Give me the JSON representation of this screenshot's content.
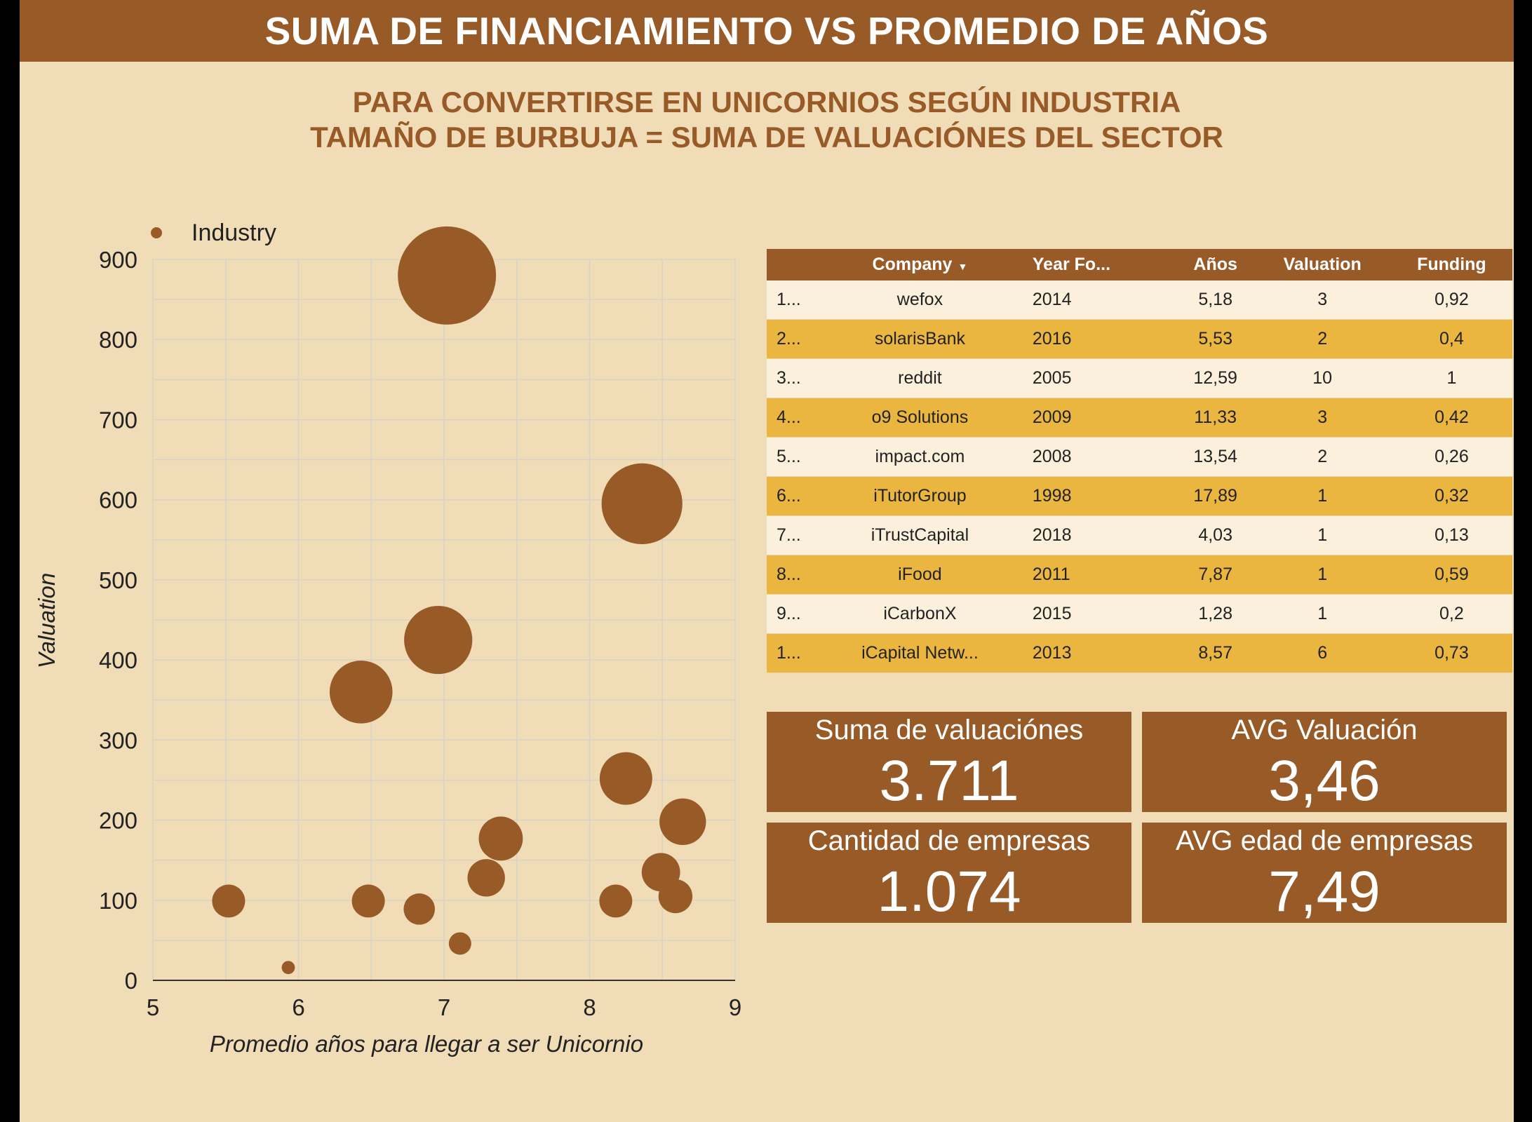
{
  "header": {
    "title": "SUMA DE FINANCIAMIENTO VS PROMEDIO DE AÑOS"
  },
  "subtitle": {
    "line1": "PARA CONVERTIRSE EN UNICORNIOS SEGÚN INDUSTRIA",
    "line2": "TAMAÑO DE BURBUJA = SUMA DE VALUACIÓNES DEL SECTOR"
  },
  "chart_data": {
    "type": "scatter",
    "legend": {
      "label": "Industry",
      "position": "top-left"
    },
    "xlabel": "Promedio años para llegar a ser Unicornio",
    "ylabel": "Valuation",
    "xlim": [
      5,
      9
    ],
    "ylim": [
      0,
      900
    ],
    "xticks": [
      5,
      6,
      7,
      8,
      9
    ],
    "yticks": [
      0,
      100,
      200,
      300,
      400,
      500,
      600,
      700,
      800,
      900
    ],
    "grid": true,
    "color": "#985b28",
    "points": [
      {
        "x": 7.02,
        "y": 880,
        "size": 880
      },
      {
        "x": 8.36,
        "y": 595,
        "size": 595
      },
      {
        "x": 6.96,
        "y": 425,
        "size": 425
      },
      {
        "x": 6.43,
        "y": 360,
        "size": 360
      },
      {
        "x": 8.25,
        "y": 252,
        "size": 252
      },
      {
        "x": 8.64,
        "y": 198,
        "size": 198
      },
      {
        "x": 7.39,
        "y": 177,
        "size": 177
      },
      {
        "x": 8.49,
        "y": 135,
        "size": 135
      },
      {
        "x": 7.29,
        "y": 128,
        "size": 128
      },
      {
        "x": 8.59,
        "y": 105,
        "size": 105
      },
      {
        "x": 5.52,
        "y": 99,
        "size": 99
      },
      {
        "x": 6.48,
        "y": 99,
        "size": 99
      },
      {
        "x": 8.18,
        "y": 99,
        "size": 99
      },
      {
        "x": 6.83,
        "y": 89,
        "size": 89
      },
      {
        "x": 7.11,
        "y": 46,
        "size": 46
      },
      {
        "x": 5.93,
        "y": 16,
        "size": 16
      }
    ]
  },
  "table": {
    "columns": {
      "company": "Company",
      "year": "Year Fo...",
      "anos": "Años",
      "valuation": "Valuation",
      "funding": "Funding"
    },
    "rows": [
      {
        "idx": "1...",
        "company": "wefox",
        "year": "2014",
        "anos": "5,18",
        "valuation": "3",
        "funding": "0,92"
      },
      {
        "idx": "2...",
        "company": "solarisBank",
        "year": "2016",
        "anos": "5,53",
        "valuation": "2",
        "funding": "0,4"
      },
      {
        "idx": "3...",
        "company": "reddit",
        "year": "2005",
        "anos": "12,59",
        "valuation": "10",
        "funding": "1"
      },
      {
        "idx": "4...",
        "company": "o9 Solutions",
        "year": "2009",
        "anos": "11,33",
        "valuation": "3",
        "funding": "0,42"
      },
      {
        "idx": "5...",
        "company": "impact.com",
        "year": "2008",
        "anos": "13,54",
        "valuation": "2",
        "funding": "0,26"
      },
      {
        "idx": "6...",
        "company": "iTutorGroup",
        "year": "1998",
        "anos": "17,89",
        "valuation": "1",
        "funding": "0,32"
      },
      {
        "idx": "7...",
        "company": "iTrustCapital",
        "year": "2018",
        "anos": "4,03",
        "valuation": "1",
        "funding": "0,13"
      },
      {
        "idx": "8...",
        "company": "iFood",
        "year": "2011",
        "anos": "7,87",
        "valuation": "1",
        "funding": "0,59"
      },
      {
        "idx": "9...",
        "company": "iCarbonX",
        "year": "2015",
        "anos": "1,28",
        "valuation": "1",
        "funding": "0,2"
      },
      {
        "idx": "1...",
        "company": "iCapital Netw...",
        "year": "2013",
        "anos": "8,57",
        "valuation": "6",
        "funding": "0,73"
      }
    ]
  },
  "kpis": [
    {
      "label": "Suma de valuaciónes",
      "value": "3.711"
    },
    {
      "label": "AVG Valuación",
      "value": "3,46"
    },
    {
      "label": "Cantidad de empresas",
      "value": "1.074"
    },
    {
      "label": "AVG edad de empresas",
      "value": "7,49"
    }
  ]
}
